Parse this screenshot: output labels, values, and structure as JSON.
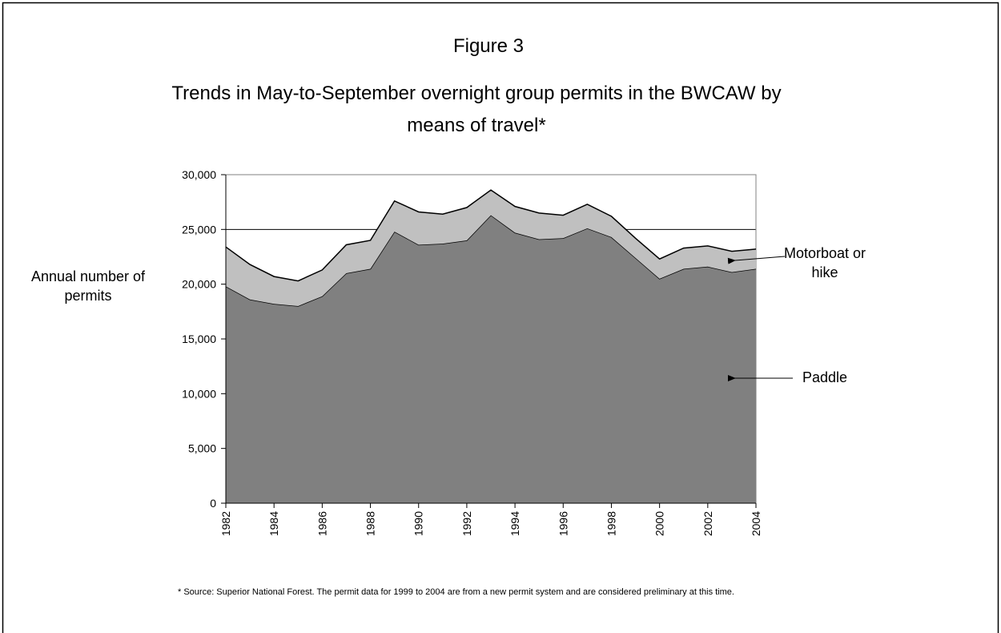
{
  "chart_data": {
    "type": "area",
    "stacked": true,
    "figure_label": "Figure 3",
    "title": "Trends in May-to-September overnight group permits in the BWCAW by means of travel*",
    "y_label": "Annual number of permits",
    "footnote": "* Source: Superior National Forest.  The permit data for 1999 to 2004 are from a new permit system and are considered preliminary at this time.",
    "x": [
      1982,
      1983,
      1984,
      1985,
      1986,
      1987,
      1988,
      1989,
      1990,
      1991,
      1992,
      1993,
      1994,
      1995,
      1996,
      1997,
      1998,
      1999,
      2000,
      2001,
      2002,
      2003,
      2004
    ],
    "xlim": [
      1982,
      2004
    ],
    "xticks": [
      1982,
      1984,
      1986,
      1988,
      1990,
      1992,
      1994,
      1996,
      1998,
      2000,
      2002,
      2004
    ],
    "ylim": [
      0,
      30000
    ],
    "yticks": [
      0,
      {
        "value": 5000,
        "label": "5,000"
      },
      {
        "value": 10000,
        "label": "10,000"
      },
      {
        "value": 15000,
        "label": "15,000"
      },
      {
        "value": 20000,
        "label": "20,000"
      },
      {
        "value": 25000,
        "label": "25,000"
      },
      {
        "value": 30000,
        "label": "30,000"
      }
    ],
    "grid": true,
    "series": [
      {
        "name": "Paddle",
        "color": "#808080",
        "values": [
          19800,
          18600,
          18200,
          18000,
          18900,
          21000,
          21400,
          24800,
          23600,
          23700,
          24000,
          26300,
          24700,
          24100,
          24200,
          25100,
          24300,
          22400,
          20500,
          21400,
          21600,
          21100,
          21400
        ]
      },
      {
        "name": "Motorboat or hike",
        "color": "#c0c0c0",
        "values": [
          3600,
          3200,
          2500,
          2300,
          2400,
          2600,
          2600,
          2800,
          3000,
          2700,
          3000,
          2300,
          2400,
          2400,
          2100,
          2200,
          1900,
          1800,
          1800,
          1900,
          1900,
          1900,
          1800
        ]
      }
    ]
  }
}
